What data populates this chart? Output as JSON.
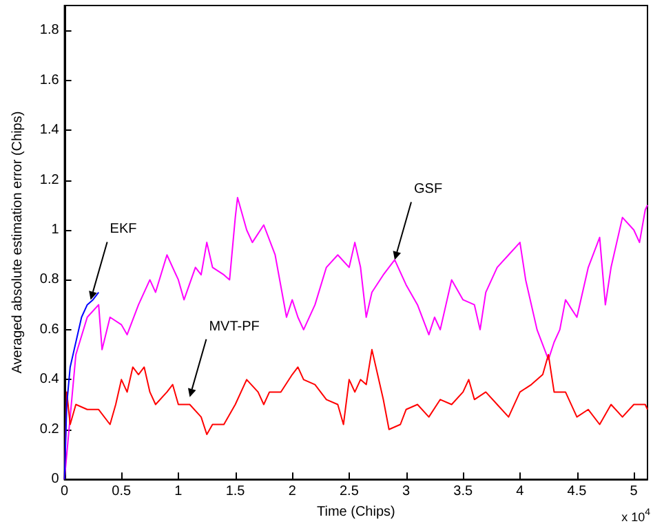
{
  "chart_data": {
    "type": "line",
    "xlabel": "Time (Chips)",
    "ylabel": "Averaged absolute estimation error (Chips)",
    "xlim": [
      0,
      5.12
    ],
    "xticks": [
      0,
      0.5,
      1,
      1.5,
      2,
      2.5,
      3,
      3.5,
      4,
      4.5,
      5
    ],
    "ylim": [
      0,
      1.9
    ],
    "yticks": [
      0,
      0.2,
      0.4,
      0.6,
      0.8,
      1,
      1.2,
      1.4,
      1.6,
      1.8
    ],
    "grid": false,
    "marker": "none",
    "line_style": "solid",
    "series": [
      {
        "color": "#ff00ff",
        "x": [
          0,
          0.1,
          0.2,
          0.3,
          0.33,
          0.4,
          0.5,
          0.55,
          0.65,
          0.75,
          0.8,
          0.9,
          1.0,
          1.05,
          1.15,
          1.2,
          1.25,
          1.3,
          1.4,
          1.45,
          1.5,
          1.52,
          1.6,
          1.65,
          1.75,
          1.85,
          1.95,
          2.0,
          2.05,
          2.1,
          2.2,
          2.3,
          2.4,
          2.5,
          2.55,
          2.6,
          2.65,
          2.7,
          2.8,
          2.9,
          3.0,
          3.1,
          3.2,
          3.25,
          3.3,
          3.4,
          3.5,
          3.6,
          3.65,
          3.7,
          3.8,
          3.9,
          4.0,
          4.05,
          4.15,
          4.25,
          4.3,
          4.35,
          4.4,
          4.5,
          4.6,
          4.7,
          4.75,
          4.8,
          4.9,
          5.0,
          5.05,
          5.1,
          5.12
        ],
        "values": [
          0.0,
          0.5,
          0.65,
          0.7,
          0.52,
          0.65,
          0.62,
          0.58,
          0.7,
          0.8,
          0.75,
          0.9,
          0.8,
          0.72,
          0.85,
          0.82,
          0.95,
          0.85,
          0.82,
          0.8,
          1.05,
          1.13,
          1.0,
          0.95,
          1.02,
          0.9,
          0.65,
          0.72,
          0.65,
          0.6,
          0.7,
          0.85,
          0.9,
          0.85,
          0.95,
          0.85,
          0.65,
          0.75,
          0.82,
          0.88,
          0.78,
          0.7,
          0.58,
          0.65,
          0.6,
          0.8,
          0.72,
          0.7,
          0.6,
          0.75,
          0.85,
          0.9,
          0.95,
          0.8,
          0.6,
          0.48,
          0.55,
          0.6,
          0.72,
          0.65,
          0.85,
          0.97,
          0.7,
          0.85,
          1.05,
          1.0,
          0.95,
          1.08,
          1.1
        ]
      },
      {
        "color": "#ff0000",
        "x": [
          0,
          0.02,
          0.05,
          0.1,
          0.2,
          0.3,
          0.4,
          0.45,
          0.5,
          0.55,
          0.6,
          0.65,
          0.7,
          0.75,
          0.8,
          0.9,
          0.95,
          1.0,
          1.1,
          1.2,
          1.25,
          1.3,
          1.4,
          1.5,
          1.6,
          1.7,
          1.75,
          1.8,
          1.9,
          2.0,
          2.05,
          2.1,
          2.2,
          2.3,
          2.4,
          2.45,
          2.5,
          2.55,
          2.6,
          2.65,
          2.7,
          2.75,
          2.8,
          2.85,
          2.95,
          3.0,
          3.1,
          3.2,
          3.3,
          3.4,
          3.5,
          3.55,
          3.6,
          3.7,
          3.8,
          3.9,
          4.0,
          4.1,
          4.2,
          4.25,
          4.3,
          4.4,
          4.5,
          4.6,
          4.7,
          4.8,
          4.9,
          5.0,
          5.1,
          5.12
        ],
        "values": [
          0.0,
          0.35,
          0.22,
          0.3,
          0.28,
          0.28,
          0.22,
          0.3,
          0.4,
          0.35,
          0.45,
          0.42,
          0.45,
          0.35,
          0.3,
          0.35,
          0.38,
          0.3,
          0.3,
          0.25,
          0.18,
          0.22,
          0.22,
          0.3,
          0.4,
          0.35,
          0.3,
          0.35,
          0.35,
          0.42,
          0.45,
          0.4,
          0.38,
          0.32,
          0.3,
          0.22,
          0.4,
          0.35,
          0.4,
          0.38,
          0.52,
          0.42,
          0.32,
          0.2,
          0.22,
          0.28,
          0.3,
          0.25,
          0.32,
          0.3,
          0.35,
          0.4,
          0.32,
          0.35,
          0.3,
          0.25,
          0.35,
          0.38,
          0.42,
          0.5,
          0.35,
          0.35,
          0.25,
          0.28,
          0.22,
          0.3,
          0.25,
          0.3,
          0.3,
          0.28
        ]
      },
      {
        "color": "#0000ff",
        "x": [
          0,
          0.02,
          0.05,
          0.1,
          0.15,
          0.2,
          0.25,
          0.3
        ],
        "values": [
          0.0,
          0.3,
          0.45,
          0.55,
          0.65,
          0.7,
          0.72,
          0.75
        ]
      }
    ],
    "annotations": [
      {
        "text": "EKF",
        "x": 0.23,
        "y": 0.72
      },
      {
        "text": "GSF",
        "x": 2.9,
        "y": 0.88
      },
      {
        "text": "MVT-PF",
        "x": 1.1,
        "y": 0.33
      },
      "x 10$^{4}$"
    ]
  }
}
